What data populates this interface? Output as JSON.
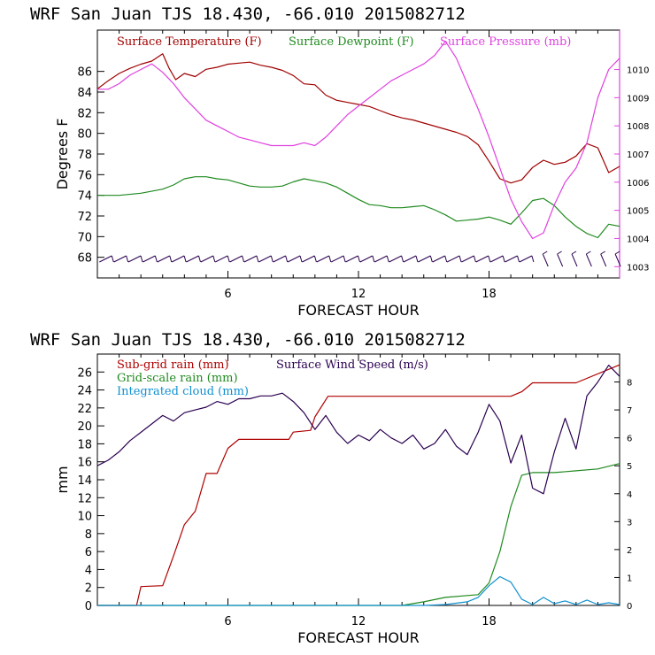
{
  "colors": {
    "temp": "#a00000",
    "dew": "#1f8a1f",
    "press": "#e040e0",
    "wind": "#2a0050",
    "subgrid": "#b00000",
    "gridscale": "#1f8a1f",
    "cloud": "#1090d0",
    "magenta_axis": "#e040e0"
  },
  "chart_data": [
    {
      "type": "line",
      "title": "WRF   San Juan TJS  18.430, -66.010  2015082712",
      "xlabel": "FORECAST HOUR",
      "ylabel": "Degrees F",
      "xlim": [
        0,
        24
      ],
      "ylim": [
        66,
        90
      ],
      "y2lim": [
        1002.6,
        1011.4
      ],
      "x_ticks": [
        6,
        12,
        18
      ],
      "y_ticks": [
        68,
        70,
        72,
        74,
        76,
        78,
        80,
        82,
        84,
        86
      ],
      "y2_ticks": [
        1003,
        1004,
        1005,
        1006,
        1007,
        1008,
        1009,
        1010
      ],
      "legend": [
        "Surface Temperature (F)",
        "Surface Dewpoint (F)",
        "Surface Pressure (mb)"
      ],
      "series": [
        {
          "name": "Surface Temperature (F)",
          "axis": "left",
          "x": [
            0,
            0.5,
            1,
            1.5,
            2,
            2.5,
            3,
            3.3,
            3.6,
            4,
            4.5,
            5,
            5.5,
            6,
            6.5,
            7,
            7.5,
            8,
            8.5,
            9,
            9.5,
            10,
            10.5,
            11,
            11.5,
            12,
            12.5,
            13,
            13.5,
            14,
            14.5,
            15,
            15.5,
            16,
            16.5,
            17,
            17.5,
            18,
            18.5,
            19,
            19.5,
            20,
            20.5,
            21,
            21.5,
            22,
            22.5,
            23,
            23.5,
            24
          ],
          "y": [
            84.3,
            85.1,
            85.8,
            86.3,
            86.7,
            87,
            87.7,
            86.3,
            85.2,
            85.8,
            85.5,
            86.2,
            86.4,
            86.7,
            86.8,
            86.9,
            86.6,
            86.4,
            86.1,
            85.6,
            84.8,
            84.7,
            83.7,
            83.2,
            83,
            82.8,
            82.6,
            82.2,
            81.8,
            81.5,
            81.3,
            81,
            80.7,
            80.4,
            80.1,
            79.7,
            78.9,
            77.3,
            75.6,
            75.2,
            75.5,
            76.7,
            77.4,
            77,
            77.2,
            77.8,
            79,
            78.6,
            76.2,
            76.8
          ]
        },
        {
          "name": "Surface Dewpoint (F)",
          "axis": "left",
          "x": [
            0,
            1,
            2,
            3,
            3.5,
            4,
            4.5,
            5,
            5.5,
            6,
            6.5,
            7,
            7.5,
            8,
            8.5,
            9,
            9.5,
            10,
            10.5,
            11,
            11.5,
            12,
            12.5,
            13,
            13.5,
            14,
            14.5,
            15,
            15.5,
            16,
            16.5,
            17,
            17.5,
            18,
            18.5,
            19,
            19.5,
            20,
            20.5,
            21,
            21.5,
            22,
            22.5,
            23,
            23.5,
            24
          ],
          "y": [
            74,
            74,
            74.2,
            74.6,
            75,
            75.6,
            75.8,
            75.8,
            75.6,
            75.5,
            75.2,
            74.9,
            74.8,
            74.8,
            74.9,
            75.3,
            75.6,
            75.4,
            75.2,
            74.8,
            74.2,
            73.6,
            73.1,
            73,
            72.8,
            72.8,
            72.9,
            73,
            72.6,
            72.1,
            71.5,
            71.6,
            71.7,
            71.9,
            71.6,
            71.2,
            72.3,
            73.5,
            73.7,
            73,
            71.9,
            71,
            70.3,
            69.9,
            71.2,
            71
          ]
        },
        {
          "name": "Surface Pressure (mb)",
          "axis": "right",
          "x": [
            0,
            0.5,
            1,
            1.5,
            2,
            2.5,
            3,
            3.5,
            4,
            4.5,
            5,
            5.5,
            6,
            6.5,
            7,
            7.5,
            8,
            8.5,
            9,
            9.5,
            10,
            10.5,
            11,
            11.5,
            12,
            12.5,
            13,
            13.5,
            14,
            14.5,
            15,
            15.5,
            16,
            16.5,
            17,
            17.5,
            18,
            18.5,
            19,
            19.5,
            20,
            20.5,
            21,
            21.5,
            22,
            22.5,
            23,
            23.5,
            24
          ],
          "y": [
            1009.3,
            1009.3,
            1009.5,
            1009.8,
            1010,
            1010.2,
            1009.9,
            1009.5,
            1009,
            1008.6,
            1008.2,
            1008,
            1007.8,
            1007.6,
            1007.5,
            1007.4,
            1007.3,
            1007.3,
            1007.3,
            1007.4,
            1007.3,
            1007.6,
            1008,
            1008.4,
            1008.7,
            1009,
            1009.3,
            1009.6,
            1009.8,
            1010,
            1010.2,
            1010.5,
            1011,
            1010.4,
            1009.5,
            1008.6,
            1007.6,
            1006.5,
            1005.4,
            1004.6,
            1004,
            1004.2,
            1005.2,
            1006,
            1006.5,
            1007.4,
            1009,
            1010,
            1010.4
          ]
        }
      ],
      "wind_barbs": {
        "count": 36,
        "note": "wind barbs along bottom at ~67.8 F level"
      }
    },
    {
      "type": "line",
      "title": "WRF   San Juan TJS  18.430, -66.010  2015082712",
      "xlabel": "FORECAST HOUR",
      "ylabel": "mm",
      "xlim": [
        0,
        24
      ],
      "ylim": [
        0,
        28
      ],
      "y2lim": [
        0,
        9
      ],
      "x_ticks": [
        6,
        12,
        18
      ],
      "y_ticks": [
        0,
        2,
        4,
        6,
        8,
        10,
        12,
        14,
        16,
        18,
        20,
        22,
        24,
        26
      ],
      "y2_ticks": [
        0,
        1,
        2,
        3,
        4,
        5,
        6,
        7,
        8
      ],
      "legend": [
        "Sub-grid rain (mm)",
        "Grid-scale rain (mm)",
        "Integrated cloud (mm)",
        "Surface Wind Speed (m/s)"
      ],
      "series": [
        {
          "name": "Sub-grid rain (mm)",
          "axis": "left",
          "x": [
            0,
            1.8,
            2,
            3,
            3.5,
            4,
            4.5,
            5,
            5.5,
            6,
            6.5,
            8,
            8.8,
            9,
            9.8,
            10,
            10.6,
            12,
            14,
            16,
            18,
            19,
            19.5,
            20,
            21,
            22,
            24
          ],
          "y": [
            0,
            0,
            2.1,
            2.2,
            5.5,
            9,
            10.5,
            14.7,
            14.7,
            17.5,
            18.5,
            18.5,
            18.5,
            19.3,
            19.5,
            21,
            23.3,
            23.3,
            23.3,
            23.3,
            23.3,
            23.3,
            23.8,
            24.8,
            24.8,
            24.8,
            26.8
          ]
        },
        {
          "name": "Grid-scale rain (mm)",
          "axis": "left",
          "x": [
            0,
            14,
            15,
            16,
            17,
            17.5,
            18,
            18.5,
            19,
            19.5,
            20,
            21,
            22,
            23,
            24
          ],
          "y": [
            0,
            0,
            0.4,
            0.9,
            1.1,
            1.2,
            2.5,
            6,
            11,
            14.5,
            14.8,
            14.8,
            15,
            15.2,
            15.8
          ]
        },
        {
          "name": "Integrated cloud (mm)",
          "axis": "left",
          "x": [
            0,
            15,
            16,
            17,
            17.5,
            18,
            18.5,
            19,
            19.5,
            20,
            20.5,
            21,
            21.5,
            22,
            22.5,
            23,
            23.5,
            24
          ],
          "y": [
            0,
            0,
            0.1,
            0.4,
            0.9,
            2.2,
            3.2,
            2.6,
            0.7,
            0.1,
            0.9,
            0.2,
            0.5,
            0.1,
            0.6,
            0.1,
            0.3,
            0.1
          ]
        },
        {
          "name": "Surface Wind Speed (m/s)",
          "axis": "right",
          "x": [
            0,
            0.5,
            1,
            1.5,
            2,
            2.5,
            3,
            3.5,
            4,
            4.5,
            5,
            5.5,
            6,
            6.5,
            7,
            7.5,
            8,
            8.5,
            9,
            9.5,
            10,
            10.5,
            11,
            11.5,
            12,
            12.5,
            13,
            13.5,
            14,
            14.5,
            15,
            15.5,
            16,
            16.5,
            17,
            17.5,
            18,
            18.5,
            19,
            19.5,
            20,
            20.5,
            21,
            21.5,
            22,
            22.5,
            23,
            23.5,
            24
          ],
          "y": [
            5,
            5.2,
            5.5,
            5.9,
            6.2,
            6.5,
            6.8,
            6.6,
            6.9,
            7,
            7.1,
            7.3,
            7.2,
            7.4,
            7.4,
            7.5,
            7.5,
            7.6,
            7.3,
            6.9,
            6.3,
            6.8,
            6.2,
            5.8,
            6.1,
            5.9,
            6.3,
            6,
            5.8,
            6.1,
            5.6,
            5.8,
            6.3,
            5.7,
            5.4,
            6.2,
            7.2,
            6.6,
            5.1,
            6.1,
            4.2,
            4,
            5.5,
            6.7,
            5.6,
            7.5,
            8,
            8.6,
            8.2
          ]
        }
      ]
    }
  ]
}
